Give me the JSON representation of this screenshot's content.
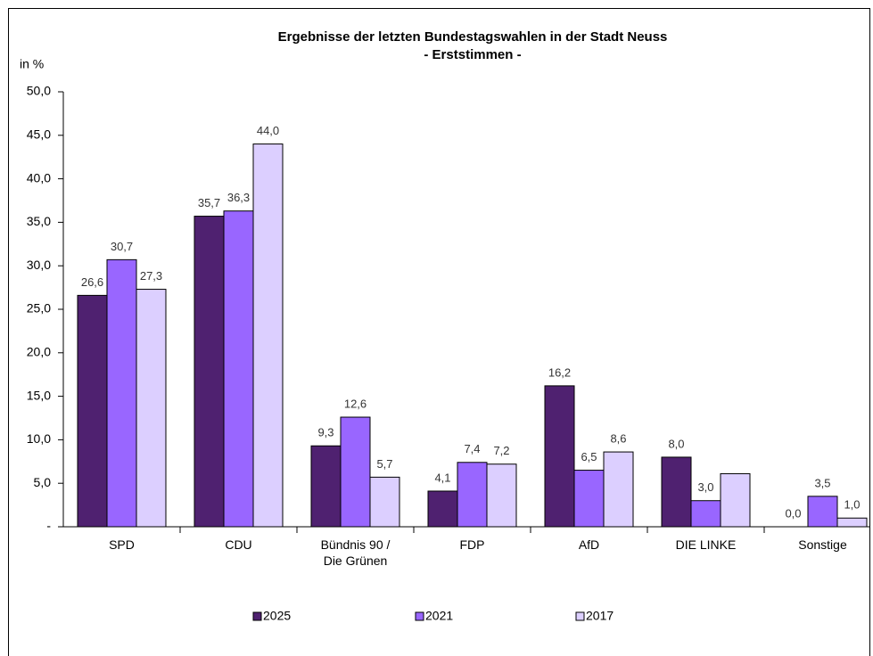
{
  "chart_data": {
    "type": "bar",
    "title": "Ergebnisse der letzten Bundestagswahlen in der Stadt Neuss",
    "subtitle": "- Erststimmen -",
    "y_label": "in %",
    "categories": [
      "SPD",
      "CDU",
      "Bündnis 90 / Die Grünen",
      "FDP",
      "AfD",
      "DIE LINKE",
      "Sonstige"
    ],
    "series": [
      {
        "name": "2025",
        "color": "#4f2170",
        "values": [
          26.6,
          35.7,
          9.3,
          4.1,
          16.2,
          8.0,
          0.0
        ],
        "value_labels": [
          "26,6",
          "35,7",
          "9,3",
          "4,1",
          "16,2",
          "8,0",
          "0,0"
        ]
      },
      {
        "name": "2021",
        "color": "#9966ff",
        "values": [
          30.7,
          36.3,
          12.6,
          7.4,
          6.5,
          3.0,
          3.5
        ],
        "value_labels": [
          "30,7",
          "36,3",
          "12,6",
          "7,4",
          "6,5",
          "3,0",
          "3,5"
        ]
      },
      {
        "name": "2017",
        "color": "#dccfff",
        "values": [
          27.3,
          44.0,
          5.7,
          7.2,
          8.6,
          6.1,
          1.0
        ],
        "value_labels": [
          "27,3",
          "44,0",
          "5,7",
          "7,2",
          "8,6",
          null,
          "1,0"
        ]
      }
    ],
    "ylim": [
      0,
      50
    ],
    "yticks": [
      {
        "value": 0,
        "label": "-"
      },
      {
        "value": 5,
        "label": "5,0"
      },
      {
        "value": 10,
        "label": "10,0"
      },
      {
        "value": 15,
        "label": "15,0"
      },
      {
        "value": 20,
        "label": "20,0"
      },
      {
        "value": 25,
        "label": "25,0"
      },
      {
        "value": 30,
        "label": "30,0"
      },
      {
        "value": 35,
        "label": "35,0"
      },
      {
        "value": 40,
        "label": "40,0"
      },
      {
        "value": 45,
        "label": "45,0"
      },
      {
        "value": 50,
        "label": "50,0"
      }
    ],
    "grid": false,
    "legend": "bottom"
  }
}
